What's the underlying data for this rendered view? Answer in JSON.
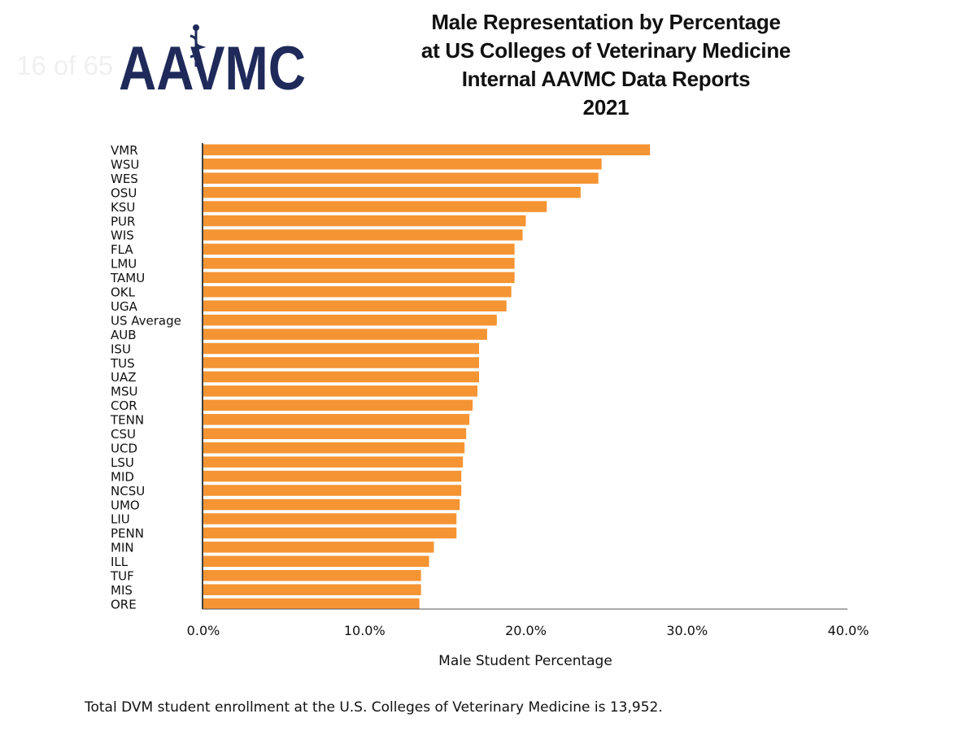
{
  "page_counter": "16 of 65",
  "logo": {
    "text": "AAVMC",
    "color": "#1f2a5a"
  },
  "title_lines": [
    "Male Representation by Percentage",
    "at US Colleges of Veterinary Medicine",
    "Internal AAVMC Data Reports",
    "2021"
  ],
  "footnote": "Total DVM student enrollment at the U.S. Colleges of Veterinary Medicine is 13,952.",
  "chart_data": {
    "type": "bar",
    "orientation": "horizontal",
    "categories": [
      "VMR",
      "WSU",
      "WES",
      "OSU",
      "KSU",
      "PUR",
      "WIS",
      "FLA",
      "LMU",
      "TAMU",
      "OKL",
      "UGA",
      "US Average",
      "AUB",
      "ISU",
      "TUS",
      "UAZ",
      "MSU",
      "COR",
      "TENN",
      "CSU",
      "UCD",
      "LSU",
      "MID",
      "NCSU",
      "UMO",
      "LIU",
      "PENN",
      "MIN",
      "ILL",
      "TUF",
      "MIS",
      "ORE"
    ],
    "values": [
      27.7,
      24.7,
      24.5,
      23.4,
      21.3,
      20.0,
      19.8,
      19.3,
      19.3,
      19.3,
      19.1,
      18.8,
      18.2,
      17.6,
      17.1,
      17.1,
      17.1,
      17.0,
      16.7,
      16.5,
      16.3,
      16.2,
      16.1,
      16.0,
      16.0,
      15.9,
      15.7,
      15.7,
      14.3,
      14.0,
      13.5,
      13.5,
      13.4
    ],
    "xlabel": "Male Student Percentage",
    "xlim": [
      0,
      40
    ],
    "x_ticks": [
      "0.0%",
      "10.0%",
      "20.0%",
      "30.0%",
      "40.0%"
    ],
    "bar_color": "#f59433",
    "grid": false,
    "legend": "none"
  }
}
